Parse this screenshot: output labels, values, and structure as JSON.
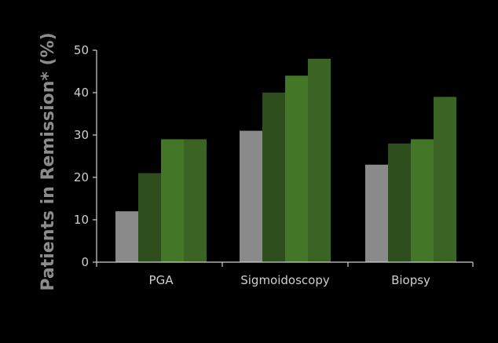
{
  "chart_data": {
    "type": "bar",
    "ylabel": "Patients in Remission* (%)",
    "xlabel": "",
    "ylim": [
      0,
      50
    ],
    "yticks": [
      0,
      10,
      20,
      30,
      40,
      50
    ],
    "categories": [
      "PGA",
      "Sigmoidoscopy",
      "Biopsy"
    ],
    "series": [
      {
        "color": "#8a8a8a",
        "values": [
          12,
          31,
          23
        ]
      },
      {
        "color": "#2e4e1e",
        "values": [
          21,
          40,
          28
        ]
      },
      {
        "color": "#437727",
        "values": [
          29,
          44,
          29
        ]
      },
      {
        "color": "#3a6324",
        "values": [
          29,
          48,
          39
        ]
      }
    ],
    "grid": false,
    "legend": "none"
  }
}
